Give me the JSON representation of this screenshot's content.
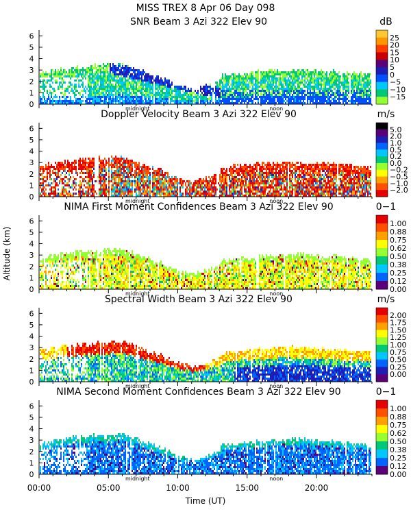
{
  "header": {
    "line1": "MISS TREX    8 Apr 06 Day 098"
  },
  "axes": {
    "y_label": "Altitude (km)",
    "x_label": "Time (UT)",
    "y_ticks": [
      "0",
      "1",
      "2",
      "3",
      "4",
      "5",
      "6"
    ],
    "x_ticks": [
      "00:00",
      "05:00",
      "10:00",
      "15:00",
      "20:00"
    ],
    "x_markers": [
      "midnight",
      "noon"
    ]
  },
  "chart_data": [
    {
      "type": "heatmap",
      "title": "SNR Beam 3 Azi 322 Elev 90",
      "unit": "dB",
      "ylim": [
        0,
        6.5
      ],
      "xlim_hours": [
        0,
        24
      ],
      "colorbar_labels": [
        "25",
        "20",
        "15",
        "10",
        "5",
        "0",
        "−5",
        "−10",
        "−15"
      ],
      "colors": [
        "#ffc832",
        "#ff9600",
        "#ff3c00",
        "#c80000",
        "#5a0078",
        "#1e1eb4",
        "#0050ff",
        "#00c8ff",
        "#00c878",
        "#96ff32"
      ]
    },
    {
      "type": "heatmap",
      "title": "Doppler Velocity Beam 3 Azi 322 Elev 90",
      "unit": "m/s",
      "ylim": [
        0,
        6.5
      ],
      "xlim_hours": [
        0,
        24
      ],
      "colorbar_labels": [
        "5.0",
        "2.0",
        "1.0",
        "0.5",
        "0.2",
        "0.0",
        "−0.2",
        "−0.5",
        "−1.0",
        "−2.0"
      ],
      "colors": [
        "#000000",
        "#5a0078",
        "#1e1eb4",
        "#0064ff",
        "#00c8ff",
        "#00c878",
        "#96ff32",
        "#ffff00",
        "#ffa000",
        "#ff5000",
        "#e60000"
      ]
    },
    {
      "type": "heatmap",
      "title": "NIMA First Moment Confidences Beam 3 Azi 322 Elev 90",
      "unit": "0−1",
      "ylim": [
        0,
        6.5
      ],
      "xlim_hours": [
        0,
        24
      ],
      "colorbar_labels": [
        "1.00",
        "0.88",
        "0.75",
        "0.62",
        "0.50",
        "0.38",
        "0.25",
        "0.12",
        "0.00"
      ],
      "colors": [
        "#e60000",
        "#ff5000",
        "#ffa000",
        "#ffff00",
        "#96ff32",
        "#00c878",
        "#00c8ff",
        "#0064ff",
        "#5a0078"
      ]
    },
    {
      "type": "heatmap",
      "title": "Spectral Width Beam 3 Azi 322 Elev 90",
      "unit": "m/s",
      "ylim": [
        0,
        6.5
      ],
      "xlim_hours": [
        0,
        24
      ],
      "colorbar_labels": [
        "2.00",
        "1.75",
        "1.50",
        "1.25",
        "1.00",
        "0.75",
        "0.50",
        "0.25",
        "0.00"
      ],
      "colors": [
        "#e60000",
        "#ff5000",
        "#ffa000",
        "#ffff00",
        "#96ff32",
        "#00c878",
        "#00c8ff",
        "#0064ff",
        "#1e1eb4",
        "#5a0078"
      ]
    },
    {
      "type": "heatmap",
      "title": "NIMA Second Moment Confidences Beam 3 Azi 322 Elev 90",
      "unit": "0−1",
      "ylim": [
        0,
        6.5
      ],
      "xlim_hours": [
        0,
        24
      ],
      "colorbar_labels": [
        "1.00",
        "0.88",
        "0.75",
        "0.62",
        "0.50",
        "0.38",
        "0.25",
        "0.12",
        "0.00"
      ],
      "colors": [
        "#e60000",
        "#ff5000",
        "#ffa000",
        "#ffff00",
        "#96ff32",
        "#00c878",
        "#00c8ff",
        "#0064ff",
        "#5a0078"
      ]
    }
  ]
}
